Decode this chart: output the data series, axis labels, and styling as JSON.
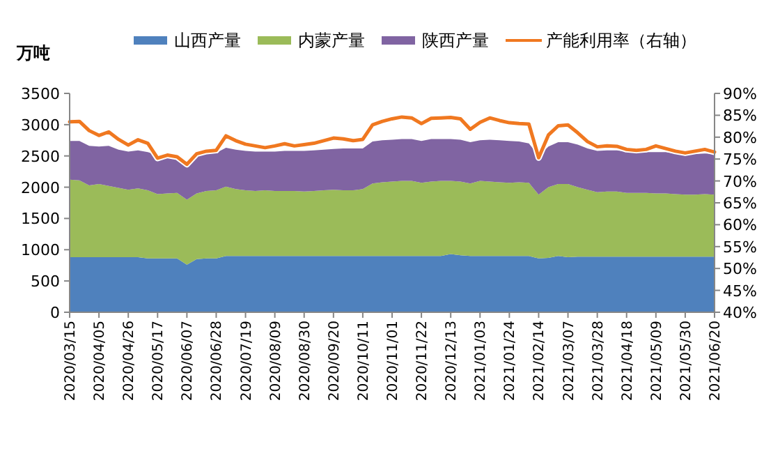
{
  "chart_data": {
    "type": "area",
    "stacked": true,
    "ylabel": "万吨",
    "legend": "top",
    "categories": [
      "2020/03/15",
      null,
      null,
      "2020/04/05",
      null,
      null,
      "2020/04/26",
      null,
      null,
      "2020/05/17",
      null,
      null,
      "2020/06/07",
      null,
      null,
      "2020/06/28",
      null,
      null,
      "2020/07/19",
      null,
      null,
      "2020/08/09",
      null,
      null,
      "2020/08/30",
      null,
      null,
      "2020/09/20",
      null,
      null,
      "2020/10/11",
      null,
      null,
      "2020/11/01",
      null,
      null,
      "2020/11/22",
      null,
      null,
      "2020/12/13",
      null,
      null,
      "2021/01/03",
      null,
      null,
      "2021/01/24",
      null,
      null,
      "2021/02/14",
      null,
      null,
      "2021/03/07",
      null,
      null,
      "2021/03/28",
      null,
      null,
      "2021/04/18",
      null,
      null,
      "2021/05/09",
      null,
      null,
      "2021/05/30",
      null,
      null,
      "2021/06/20"
    ],
    "ylim": [
      0,
      3500
    ],
    "yticks": [
      0,
      500,
      1000,
      1500,
      2000,
      2500,
      3000,
      3500
    ],
    "y2lim": [
      40,
      90
    ],
    "y2ticks": [
      {
        "value": 40,
        "label": "40%"
      },
      {
        "value": 45,
        "label": "45%"
      },
      {
        "value": 50,
        "label": "50%"
      },
      {
        "value": 55,
        "label": "55%"
      },
      {
        "value": 60,
        "label": "60%"
      },
      {
        "value": 65,
        "label": "65%"
      },
      {
        "value": 70,
        "label": "70%"
      },
      {
        "value": 75,
        "label": "75%"
      },
      {
        "value": 80,
        "label": "80%"
      },
      {
        "value": 85,
        "label": "85%"
      },
      {
        "value": 90,
        "label": "90%"
      }
    ],
    "series": [
      {
        "name": "山西产量",
        "color": "#4f81bd",
        "values": [
          880,
          880,
          880,
          880,
          880,
          880,
          880,
          880,
          860,
          860,
          860,
          860,
          760,
          850,
          860,
          860,
          900,
          900,
          900,
          900,
          900,
          900,
          900,
          900,
          900,
          900,
          900,
          900,
          900,
          900,
          900,
          900,
          900,
          900,
          900,
          900,
          900,
          900,
          900,
          930,
          910,
          900,
          900,
          900,
          900,
          900,
          900,
          900,
          860,
          870,
          900,
          880,
          890,
          890,
          890,
          890,
          890,
          890,
          890,
          890,
          890,
          890,
          890,
          890,
          890,
          890,
          890
        ]
      },
      {
        "name": "内蒙产量",
        "color": "#9bbb59",
        "values": [
          1240,
          1230,
          1150,
          1170,
          1140,
          1110,
          1080,
          1100,
          1090,
          1030,
          1040,
          1050,
          1040,
          1050,
          1080,
          1090,
          1110,
          1070,
          1050,
          1040,
          1050,
          1040,
          1040,
          1040,
          1030,
          1040,
          1050,
          1060,
          1050,
          1050,
          1070,
          1160,
          1180,
          1190,
          1200,
          1200,
          1170,
          1190,
          1200,
          1170,
          1180,
          1160,
          1200,
          1190,
          1180,
          1170,
          1180,
          1170,
          1020,
          1130,
          1150,
          1170,
          1110,
          1070,
          1030,
          1040,
          1040,
          1020,
          1020,
          1020,
          1010,
          1010,
          1000,
          990,
          990,
          1000,
          990
        ]
      },
      {
        "name": "陕西产量",
        "color": "#8064a2",
        "values": [
          620,
          630,
          630,
          600,
          640,
          610,
          610,
          610,
          610,
          620,
          620,
          590,
          620,
          610,
          600,
          600,
          620,
          630,
          630,
          630,
          620,
          630,
          640,
          640,
          650,
          650,
          650,
          650,
          670,
          670,
          650,
          670,
          670,
          670,
          670,
          670,
          670,
          680,
          670,
          670,
          670,
          660,
          650,
          670,
          670,
          670,
          650,
          630,
          620,
          650,
          670,
          670,
          680,
          660,
          660,
          660,
          660,
          660,
          650,
          650,
          660,
          660,
          650,
          650,
          650,
          650,
          650
        ]
      },
      {
        "name": "产能利用率（右轴）",
        "type": "line",
        "axis": "y2",
        "color": "#f07820",
        "values": [
          83.5,
          83.6,
          81.5,
          80.4,
          81.2,
          79.5,
          78.2,
          79.4,
          78.6,
          75.2,
          75.9,
          75.5,
          73.8,
          76.2,
          76.8,
          77.0,
          80.3,
          79.2,
          78.4,
          78.0,
          77.6,
          78.0,
          78.5,
          78.0,
          78.3,
          78.6,
          79.2,
          79.8,
          79.6,
          79.2,
          79.5,
          82.8,
          83.6,
          84.2,
          84.6,
          84.4,
          83.1,
          84.3,
          84.4,
          84.5,
          84.2,
          81.8,
          83.4,
          84.4,
          83.8,
          83.3,
          83.1,
          83.0,
          75.3,
          80.5,
          82.6,
          82.8,
          81.0,
          79.0,
          77.8,
          78.0,
          77.9,
          77.2,
          77.0,
          77.2,
          78.0,
          77.4,
          76.8,
          76.4,
          76.8,
          77.2,
          76.6
        ]
      }
    ]
  }
}
